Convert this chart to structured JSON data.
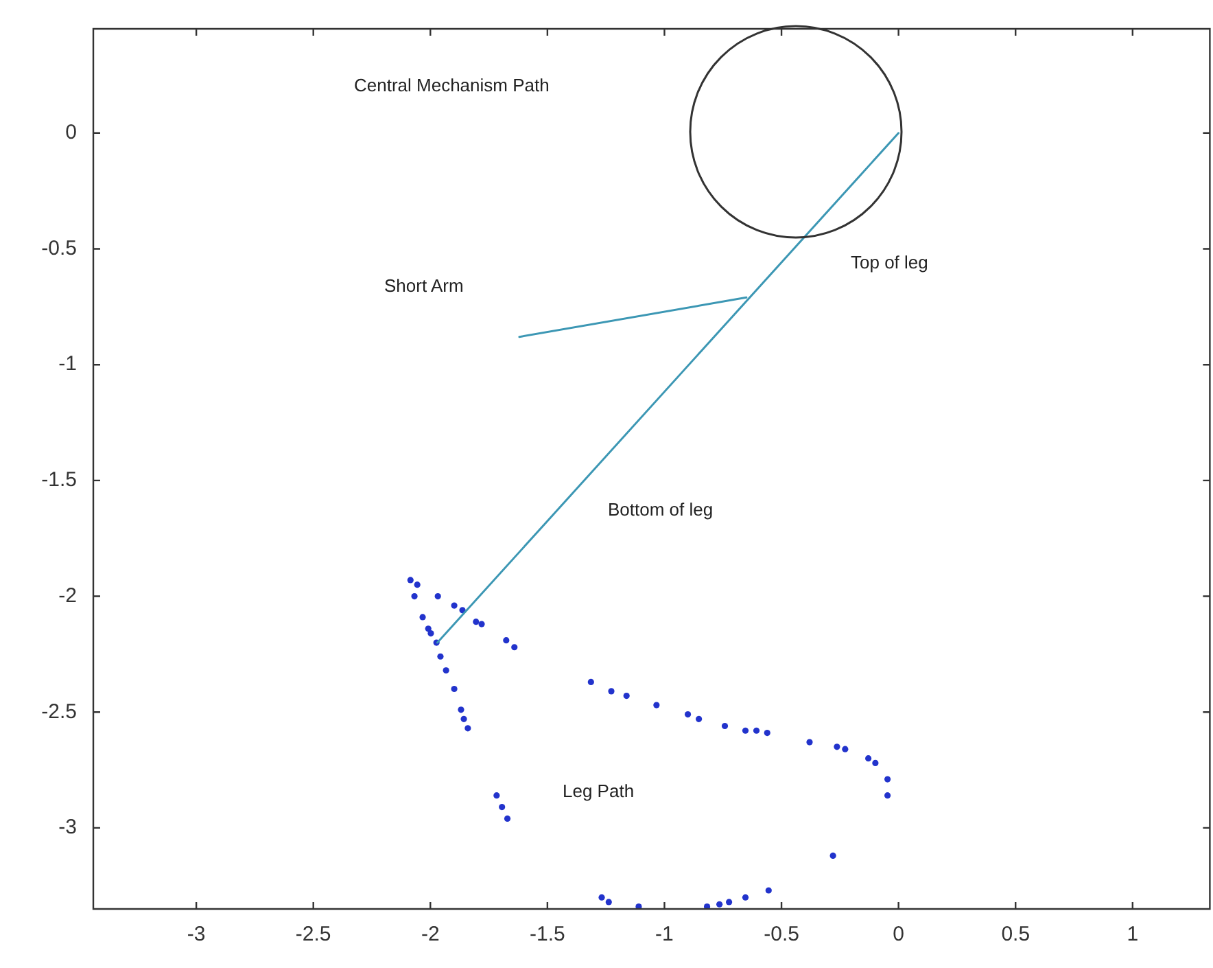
{
  "chart_data": {
    "type": "line",
    "xlim": [
      -3.44,
      1.33
    ],
    "ylim": [
      -3.35,
      0.45
    ],
    "xticks": [
      -3,
      -2.5,
      -2,
      -1.5,
      -1,
      -0.5,
      0,
      0.5,
      1
    ],
    "yticks": [
      -3,
      -2.5,
      -2,
      -1.5,
      -1,
      -0.5,
      0
    ],
    "grid": false,
    "legend": false,
    "series": [
      {
        "color": "#3c97b4",
        "marker": "none",
        "line_style": "solid",
        "x": [
          -1.97,
          0
        ],
        "values": [
          -2.2,
          0
        ]
      },
      {
        "color": "#3c97b4",
        "marker": "none",
        "line_style": "solid",
        "x": [
          -1.62,
          -0.65
        ],
        "values": [
          -0.88,
          -0.71
        ]
      },
      {
        "type": "scatter",
        "color": "#2233cc",
        "marker": "circle",
        "x": [
          -2.085,
          -2.056,
          -2.068,
          -1.968,
          -1.898,
          -1.863,
          -1.805,
          -1.781,
          -1.676,
          -1.641,
          -2.033,
          -2.009,
          -1.998,
          -1.974,
          -1.957,
          -1.933,
          -1.898,
          -1.869,
          -1.857,
          -1.84,
          -1.717,
          -1.694,
          -1.671,
          -1.314,
          -1.227,
          -1.162,
          -1.034,
          -0.9,
          -0.853,
          -0.742,
          -0.654,
          -0.607,
          -0.561,
          -0.38,
          -0.263,
          -0.228,
          -0.129,
          -0.099,
          -0.047,
          -0.047,
          -0.28,
          -1.268,
          -1.238,
          -1.11,
          -0.818,
          -0.765,
          -0.724,
          -0.654,
          -0.555
        ],
        "values": [
          -1.93,
          -1.95,
          -2.0,
          -2.0,
          -2.04,
          -2.06,
          -2.11,
          -2.12,
          -2.19,
          -2.22,
          -2.09,
          -2.14,
          -2.16,
          -2.2,
          -2.26,
          -2.32,
          -2.4,
          -2.49,
          -2.53,
          -2.57,
          -2.86,
          -2.91,
          -2.96,
          -2.37,
          -2.41,
          -2.43,
          -2.47,
          -2.51,
          -2.53,
          -2.56,
          -2.58,
          -2.58,
          -2.59,
          -2.63,
          -2.65,
          -2.66,
          -2.7,
          -2.72,
          -2.79,
          -2.86,
          -3.12,
          -3.3,
          -3.32,
          -3.34,
          -3.34,
          -3.33,
          -3.32,
          -3.3,
          -3.27
        ]
      }
    ],
    "annotations": [
      "Central Mechanism Path",
      "Short Arm",
      "Top of leg",
      "Bottom of leg",
      "Leg Path"
    ]
  }
}
